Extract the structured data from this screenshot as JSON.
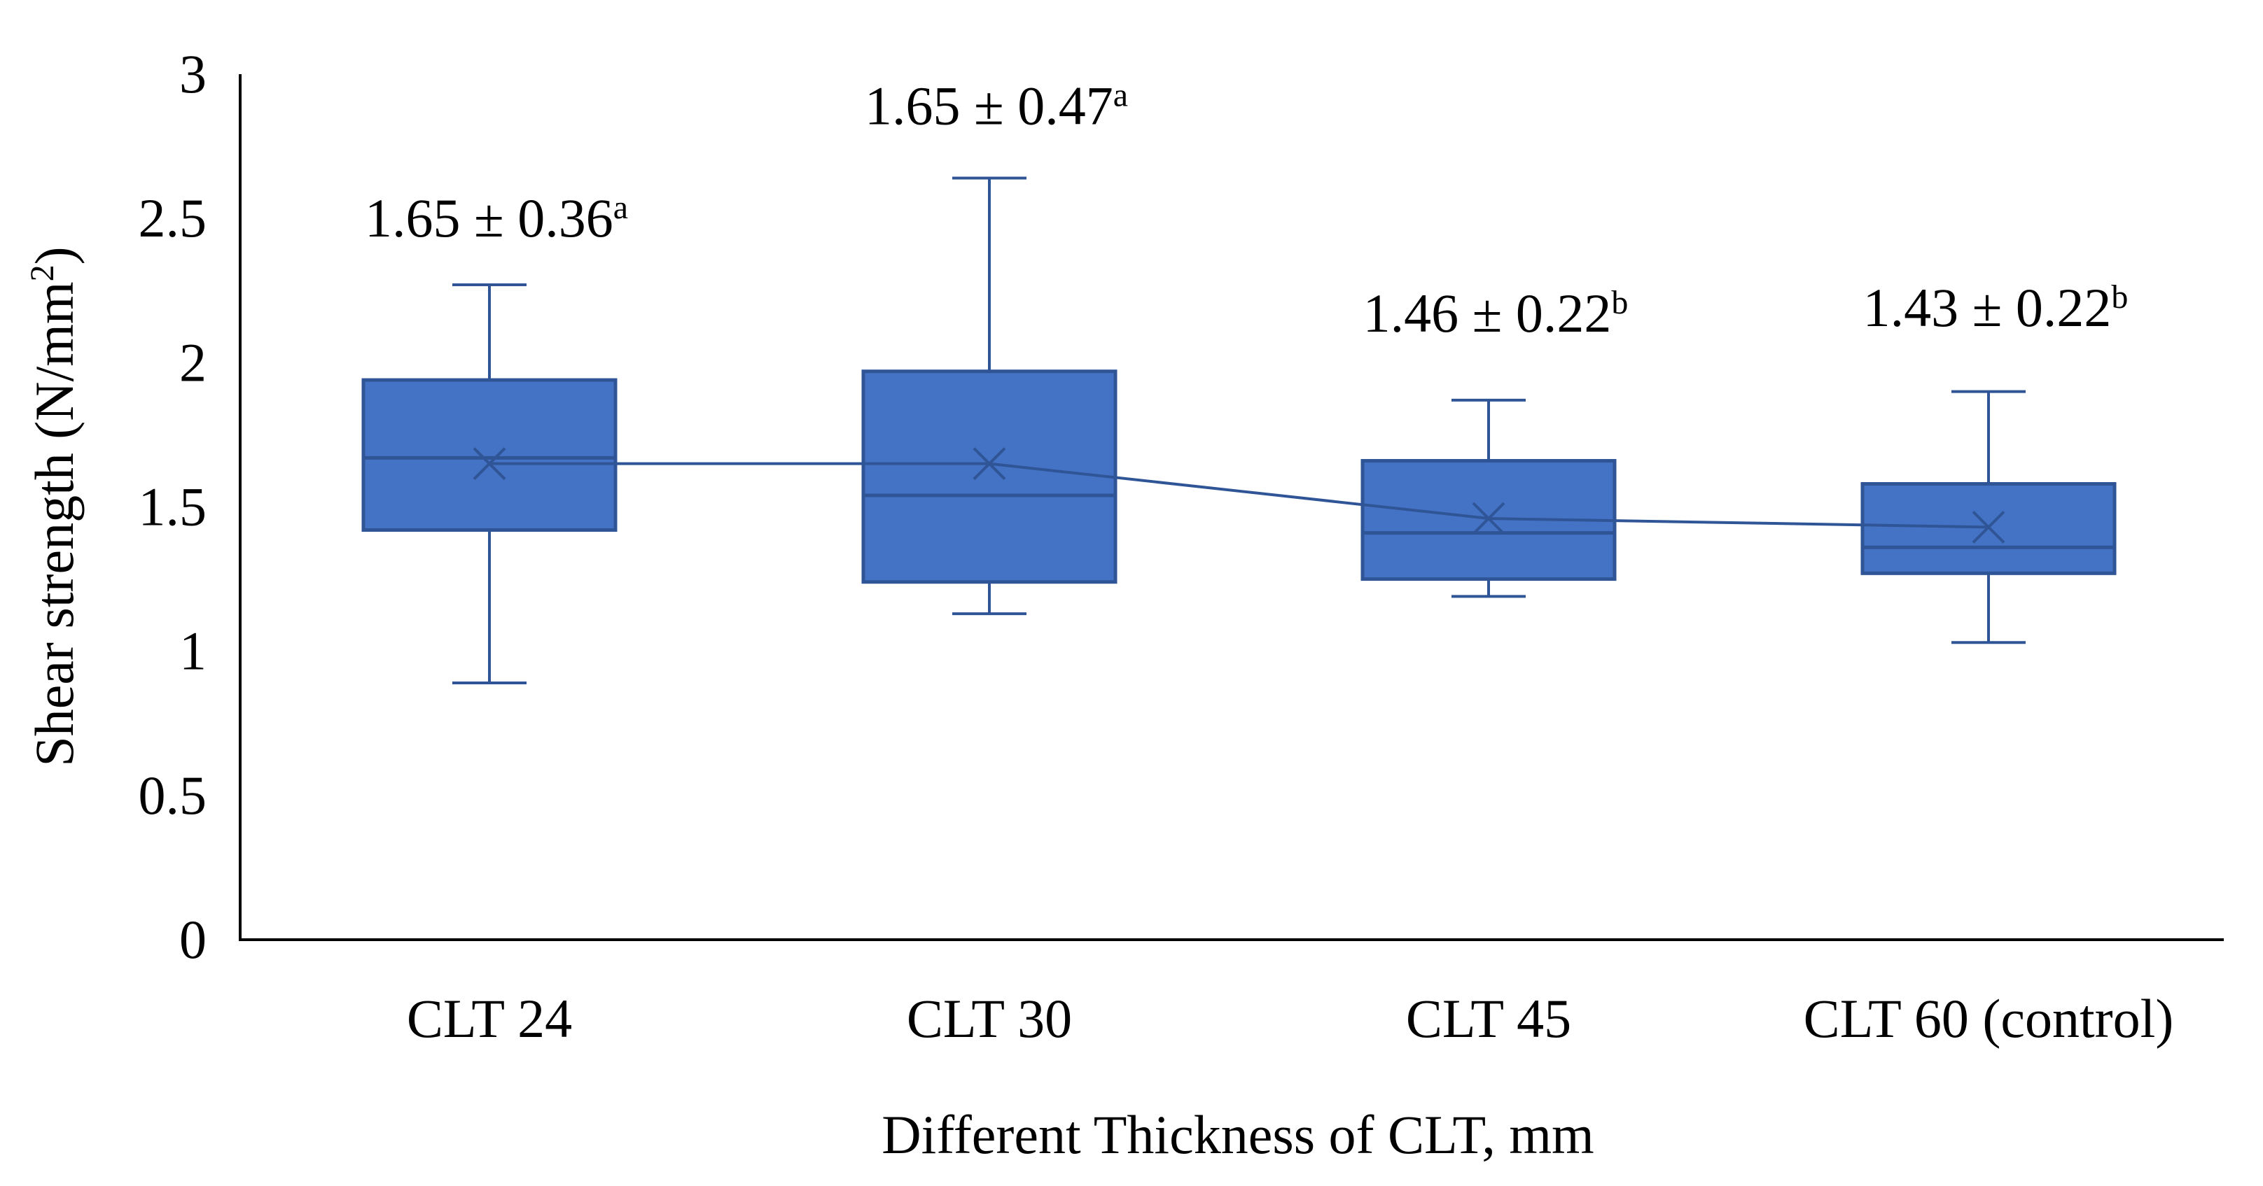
{
  "chart_data": {
    "type": "box",
    "title": "",
    "xlabel": "Different Thickness of CLT, mm",
    "ylabel": {
      "main": "Shear strength (N/mm",
      "superscript": "2",
      "close": ")"
    },
    "ylim": [
      0,
      3
    ],
    "yticks": [
      {
        "value": 0,
        "label": "0"
      },
      {
        "value": 0.5,
        "label": "0.5"
      },
      {
        "value": 1,
        "label": "1"
      },
      {
        "value": 1.5,
        "label": "1.5"
      },
      {
        "value": 2,
        "label": "2"
      },
      {
        "value": 2.5,
        "label": "2.5"
      },
      {
        "value": 3,
        "label": "3"
      }
    ],
    "categories": [
      "CLT 24",
      "CLT 30",
      "CLT 45",
      "CLT 60 (control)"
    ],
    "boxes": [
      {
        "min": 0.89,
        "q1": 1.42,
        "median": 1.67,
        "q3": 1.94,
        "max": 2.27,
        "mean": 1.65
      },
      {
        "min": 1.13,
        "q1": 1.24,
        "median": 1.54,
        "q3": 1.97,
        "max": 2.64,
        "mean": 1.65
      },
      {
        "min": 1.19,
        "q1": 1.25,
        "median": 1.41,
        "q3": 1.66,
        "max": 1.87,
        "mean": 1.46
      },
      {
        "min": 1.03,
        "q1": 1.27,
        "median": 1.36,
        "q3": 1.58,
        "max": 1.9,
        "mean": 1.43
      }
    ],
    "annotations": [
      {
        "text": "1.65 ± 0.36",
        "sup": "a",
        "y": 2.5
      },
      {
        "text": "1.65 ± 0.47",
        "sup": "a",
        "y": 2.89
      },
      {
        "text": "1.46 ± 0.22",
        "sup": "b",
        "y": 2.17
      },
      {
        "text": "1.43 ± 0.22",
        "sup": "b",
        "y": 2.19
      }
    ],
    "colors": {
      "box_fill": "#4472c4",
      "stroke": "#2f5597",
      "axis": "#000000",
      "text": "#000000"
    }
  }
}
